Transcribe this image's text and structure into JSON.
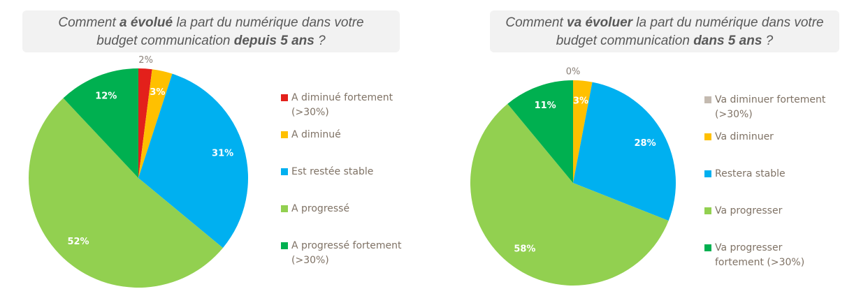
{
  "chart_data": [
    {
      "type": "pie",
      "title": [
        {
          "text": "Comment ",
          "bold": false
        },
        {
          "text": "a évolué",
          "bold": true
        },
        {
          "text": " la part du numérique dans votre budget communication ",
          "bold": false
        },
        {
          "text": "depuis 5 ans",
          "bold": true
        },
        {
          "text": " ?",
          "bold": false
        }
      ],
      "categories": [
        "A diminué fortement (>30%)",
        "A diminué",
        "Est restée stable",
        "A progressé",
        "A progressé fortement (>30%)"
      ],
      "values": [
        2,
        3,
        31,
        52,
        12
      ],
      "value_labels": [
        "2%",
        "3%",
        "31%",
        "52%",
        "12%"
      ],
      "colors": [
        "#e3201b",
        "#ffc000",
        "#00b0f0",
        "#92d050",
        "#00b050"
      ]
    },
    {
      "type": "pie",
      "title": [
        {
          "text": "Comment ",
          "bold": false
        },
        {
          "text": "va évoluer",
          "bold": true
        },
        {
          "text": " la part du numérique dans votre budget communication ",
          "bold": false
        },
        {
          "text": "dans 5 ans",
          "bold": true
        },
        {
          "text": " ?",
          "bold": false
        }
      ],
      "categories": [
        "Va diminuer fortement (>30%)",
        "Va diminuer",
        "Restera stable",
        "Va progresser",
        "Va progresser fortement (>30%)"
      ],
      "values": [
        0,
        3,
        28,
        58,
        11
      ],
      "value_labels": [
        "0%",
        "3%",
        "28%",
        "58%",
        "11%"
      ],
      "colors": [
        "#c4bab0",
        "#ffc000",
        "#00b0f0",
        "#92d050",
        "#00b050"
      ]
    }
  ]
}
